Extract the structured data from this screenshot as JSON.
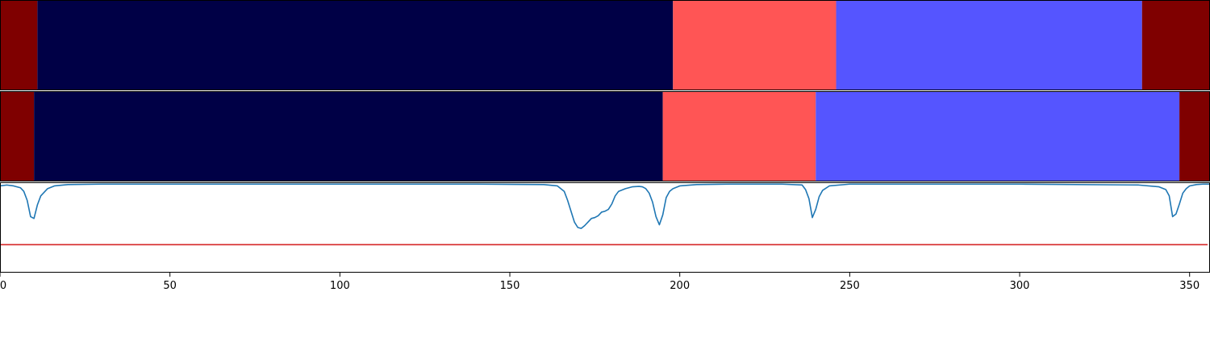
{
  "chart_data": [
    {
      "type": "heatmap",
      "name": "segmentation-row-1",
      "xlim": [
        0,
        356
      ],
      "segments": [
        {
          "start": 0,
          "end": 11,
          "color": "#7f0000"
        },
        {
          "start": 11,
          "end": 198,
          "color": "#000046"
        },
        {
          "start": 198,
          "end": 246,
          "color": "#ff5555"
        },
        {
          "start": 246,
          "end": 336,
          "color": "#5555ff"
        },
        {
          "start": 336,
          "end": 356,
          "color": "#7f0000"
        }
      ]
    },
    {
      "type": "heatmap",
      "name": "segmentation-row-2",
      "xlim": [
        0,
        356
      ],
      "segments": [
        {
          "start": 0,
          "end": 10,
          "color": "#7f0000"
        },
        {
          "start": 10,
          "end": 195,
          "color": "#000046"
        },
        {
          "start": 195,
          "end": 240,
          "color": "#ff5555"
        },
        {
          "start": 240,
          "end": 347,
          "color": "#5555ff"
        },
        {
          "start": 347,
          "end": 356,
          "color": "#7f0000"
        }
      ]
    },
    {
      "type": "line",
      "xlim": [
        0,
        356
      ],
      "ylim": [
        0,
        1
      ],
      "grid": false,
      "xticks": [
        0,
        50,
        100,
        150,
        200,
        250,
        300,
        350
      ],
      "threshold": {
        "value": 0.31,
        "color": "#d62728"
      },
      "series": [
        {
          "color": "#1f77b4",
          "x": [
            0,
            2,
            4,
            6,
            7,
            8,
            9,
            10,
            11,
            12,
            14,
            16,
            20,
            30,
            60,
            100,
            140,
            160,
            164,
            166,
            167,
            168,
            169,
            170,
            171,
            172,
            173,
            174,
            175,
            176,
            177,
            178,
            179,
            180,
            181,
            182,
            184,
            186,
            188,
            189,
            190,
            191,
            192,
            193,
            194,
            195,
            196,
            197,
            198,
            200,
            205,
            215,
            230,
            236,
            237,
            238,
            239,
            240,
            241,
            242,
            244,
            250,
            270,
            300,
            335,
            341,
            343,
            344,
            345,
            346,
            347,
            348,
            349,
            350,
            352,
            354,
            356
          ],
          "y": [
            0.96,
            0.97,
            0.96,
            0.94,
            0.9,
            0.8,
            0.62,
            0.6,
            0.75,
            0.85,
            0.93,
            0.96,
            0.975,
            0.98,
            0.98,
            0.98,
            0.98,
            0.975,
            0.96,
            0.9,
            0.8,
            0.68,
            0.56,
            0.5,
            0.49,
            0.52,
            0.56,
            0.6,
            0.61,
            0.63,
            0.67,
            0.68,
            0.7,
            0.76,
            0.85,
            0.9,
            0.93,
            0.95,
            0.955,
            0.95,
            0.93,
            0.88,
            0.78,
            0.62,
            0.53,
            0.64,
            0.83,
            0.9,
            0.93,
            0.96,
            0.975,
            0.98,
            0.98,
            0.97,
            0.92,
            0.82,
            0.61,
            0.7,
            0.84,
            0.91,
            0.96,
            0.98,
            0.98,
            0.98,
            0.97,
            0.95,
            0.92,
            0.85,
            0.62,
            0.65,
            0.76,
            0.88,
            0.93,
            0.96,
            0.975,
            0.98,
            0.98
          ]
        }
      ]
    }
  ]
}
